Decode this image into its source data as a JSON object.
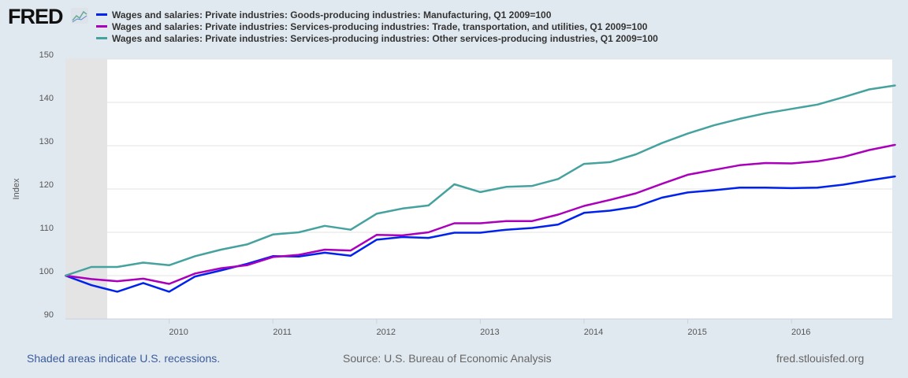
{
  "header": {
    "logo": "FRED"
  },
  "footer": {
    "recession_note": "Shaded areas indicate U.S. recessions.",
    "source": "Source: U.S. Bureau of Economic Analysis",
    "site": "fred.stlouisfed.org"
  },
  "chart_data": {
    "type": "line",
    "ylabel": "Index",
    "ylim": [
      90,
      150
    ],
    "yticks": [
      "90",
      "100",
      "110",
      "120",
      "130",
      "140",
      "150"
    ],
    "xticks": [
      "2010",
      "2011",
      "2012",
      "2013",
      "2014",
      "2015",
      "2016"
    ],
    "x_start": "2009 Q1",
    "x_end": "2017 Q1",
    "frequency": "quarterly",
    "recession": [
      "2009 Q1",
      "2009 Q2"
    ],
    "grid": true,
    "legend_position": "top",
    "series": [
      {
        "name": "Wages and salaries: Private industries: Goods-producing industries: Manufacturing, Q1 2009=100",
        "color": "#0022ee",
        "values": [
          100,
          97.8,
          96.3,
          98.3,
          96.3,
          99.8,
          101.2,
          102.7,
          104.5,
          104.4,
          105.3,
          104.6,
          108.3,
          108.9,
          108.7,
          109.9,
          109.9,
          110.6,
          111.0,
          111.8,
          114.5,
          115.0,
          115.9,
          118.0,
          119.2,
          119.7,
          120.3,
          120.3,
          120.2,
          120.3,
          121.0,
          122.0,
          122.9
        ]
      },
      {
        "name": "Wages and salaries: Private industries: Services-producing industries: Trade, transportation, and utilities, Q1 2009=100",
        "color": "#aa00bb",
        "values": [
          100,
          99.2,
          98.7,
          99.3,
          98.1,
          100.5,
          101.7,
          102.4,
          104.3,
          104.8,
          106.0,
          105.8,
          109.4,
          109.3,
          110.0,
          112.1,
          112.1,
          112.6,
          112.6,
          114.1,
          116.1,
          117.5,
          119.0,
          121.2,
          123.3,
          124.4,
          125.5,
          126.0,
          125.9,
          126.4,
          127.4,
          129.0,
          130.2
        ]
      },
      {
        "name": "Wages and salaries: Private industries: Services-producing industries: Other services-producing industries, Q1 2009=100",
        "color": "#45a29e",
        "values": [
          100,
          102,
          102,
          103,
          102.4,
          104.5,
          106,
          107.2,
          109.5,
          110,
          111.5,
          110.6,
          114.3,
          115.5,
          116.2,
          121.1,
          119.3,
          120.5,
          120.7,
          122.3,
          125.8,
          126.2,
          128.0,
          130.6,
          132.8,
          134.7,
          136.2,
          137.5,
          138.5,
          139.5,
          141.2,
          143.0,
          143.9
        ]
      }
    ]
  }
}
